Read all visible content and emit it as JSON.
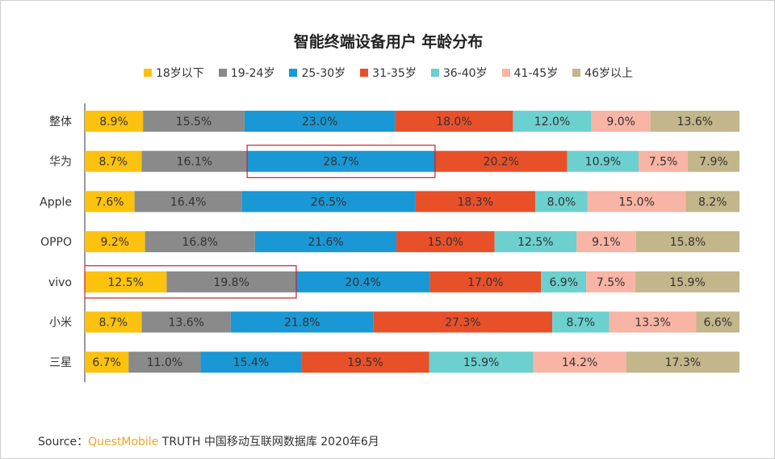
{
  "chart_data": {
    "type": "bar",
    "stacked": true,
    "orientation": "horizontal",
    "title": "智能终端设备用户 年龄分布",
    "categories": [
      "整体",
      "华为",
      "Apple",
      "OPPO",
      "vivo",
      "小米",
      "三星"
    ],
    "series": [
      {
        "name": "18岁以下",
        "color": "#fcc20e",
        "values": [
          8.9,
          8.7,
          7.6,
          9.2,
          12.5,
          8.7,
          6.7
        ]
      },
      {
        "name": "19-24岁",
        "color": "#8a8a8a",
        "values": [
          15.5,
          16.1,
          16.4,
          16.8,
          19.8,
          13.6,
          11.0
        ]
      },
      {
        "name": "25-30岁",
        "color": "#1a98d5",
        "values": [
          23.0,
          28.7,
          26.5,
          21.6,
          20.4,
          21.8,
          15.4
        ]
      },
      {
        "name": "31-35岁",
        "color": "#e8502a",
        "values": [
          18.0,
          20.2,
          18.3,
          15.0,
          17.0,
          27.3,
          19.5
        ]
      },
      {
        "name": "36-40岁",
        "color": "#6cd0cf",
        "values": [
          12.0,
          10.9,
          8.0,
          12.5,
          6.9,
          8.7,
          15.9
        ]
      },
      {
        "name": "41-45岁",
        "color": "#f8b4a4",
        "values": [
          9.0,
          7.5,
          15.0,
          9.1,
          7.5,
          13.3,
          14.2
        ]
      },
      {
        "name": "46岁以上",
        "color": "#c2b68a",
        "values": [
          13.6,
          7.9,
          8.2,
          15.8,
          15.9,
          6.6,
          17.3
        ]
      }
    ],
    "value_suffix": "%",
    "legend_position": "top",
    "highlights": [
      {
        "category": "华为",
        "series": [
          "25-30岁"
        ]
      },
      {
        "category": "vivo",
        "series": [
          "18岁以下",
          "19-24岁"
        ]
      }
    ]
  },
  "source": {
    "label": "Source：",
    "brand": "QuestMobile",
    "rest": "TRUTH 中国移动互联网数据库 2020年6月"
  }
}
